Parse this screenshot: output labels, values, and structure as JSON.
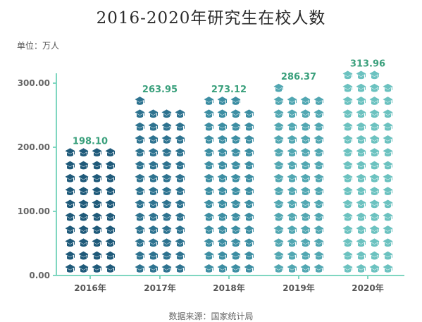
{
  "title": "2016-2020年研究生在校人数",
  "unit_label": "单位：万人",
  "source": "数据来源：国家统计局",
  "chart_data": {
    "type": "bar",
    "categories": [
      "2016年",
      "2017年",
      "2018年",
      "2019年",
      "2020年"
    ],
    "values": [
      198.1,
      263.95,
      273.12,
      286.37,
      313.96
    ],
    "value_labels": [
      "198.10",
      "263.95",
      "273.12",
      "286.37",
      "313.96"
    ],
    "y_ticks": [
      "0.00",
      "100.00",
      "200.00",
      "300.00"
    ],
    "y_tick_values": [
      0,
      100,
      200,
      300
    ],
    "ylim": [
      0,
      300
    ],
    "grid": false,
    "icon": "graduation-cap-icon",
    "icons_per_row": 4,
    "units_per_icon": 5,
    "bar_colors": [
      "#1f5a7a",
      "#2e7390",
      "#3d8ea3",
      "#52a7b2",
      "#6cc2c0"
    ],
    "value_label_color": "#3aa07c",
    "axis_color": "#7fd6c0"
  }
}
